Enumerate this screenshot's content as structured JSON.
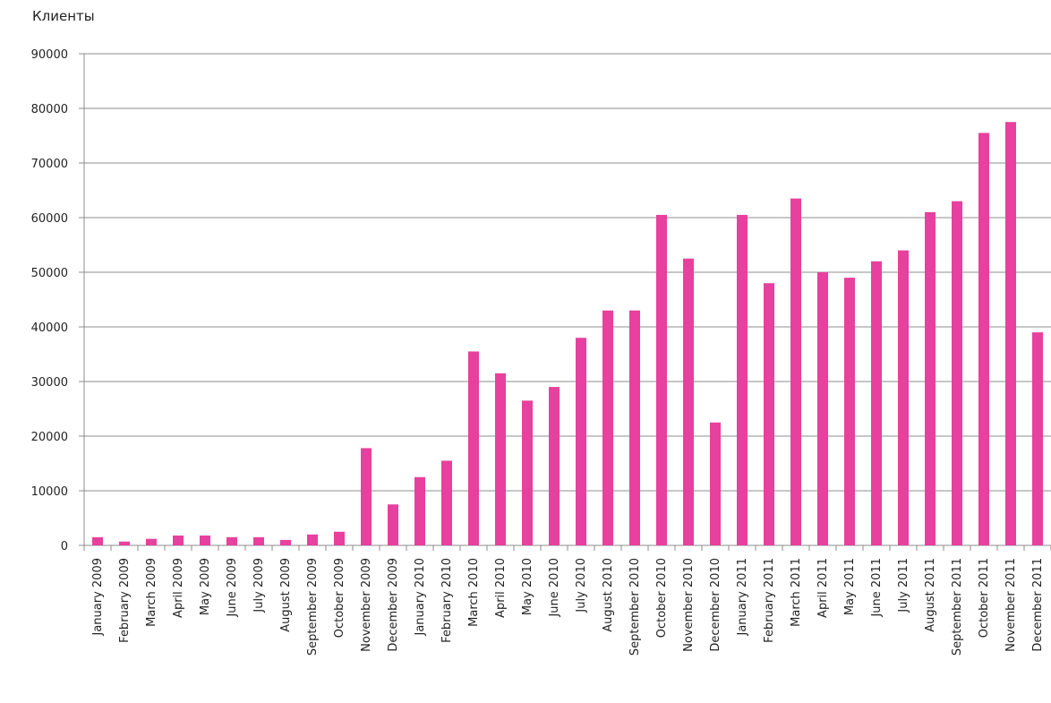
{
  "chart_data": {
    "type": "bar",
    "ylabel": "Клиенты",
    "ylim": [
      0,
      90000
    ],
    "yticks": [
      "0",
      "10000",
      "20000",
      "30000",
      "40000",
      "50000",
      "60000",
      "70000",
      "80000",
      "90000"
    ],
    "grid": true,
    "bar_color": "#e8409e",
    "categories": [
      "January 2009",
      "February 2009",
      "March 2009",
      "April 2009",
      "May 2009",
      "June 2009",
      "July 2009",
      "August 2009",
      "September 2009",
      "October 2009",
      "November 2009",
      "December 2009",
      "January 2010",
      "February 2010",
      "March 2010",
      "April 2010",
      "May 2010",
      "June 2010",
      "July 2010",
      "August 2010",
      "September 2010",
      "October 2010",
      "November 2010",
      "December 2010",
      "January 2011",
      "February 2011",
      "March 2011",
      "April 2011",
      "May 2011",
      "June 2011",
      "July 2011",
      "August 2011",
      "September 2011",
      "October 2011",
      "November 2011",
      "December 2011"
    ],
    "values": [
      1500,
      700,
      1200,
      1800,
      1800,
      1500,
      1500,
      1000,
      2000,
      2500,
      17800,
      7500,
      12500,
      15500,
      35500,
      31500,
      26500,
      29000,
      38000,
      43000,
      43000,
      60500,
      52500,
      22500,
      60500,
      48000,
      63500,
      50000,
      49000,
      52000,
      54000,
      61000,
      63000,
      75500,
      77500,
      39000
    ]
  }
}
